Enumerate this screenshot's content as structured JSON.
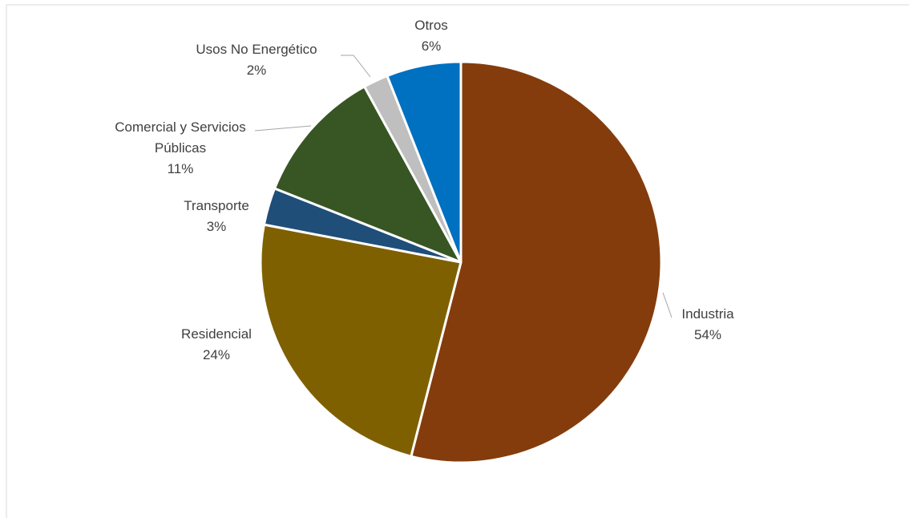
{
  "chart_data": {
    "type": "pie",
    "categories": [
      "Industria",
      "Residencial",
      "Transporte",
      "Comercial y Servicios Públicas",
      "Usos No Energético",
      "Otros"
    ],
    "values": [
      54,
      24,
      3,
      11,
      2,
      6
    ],
    "value_labels": [
      "54%",
      "24%",
      "3%",
      "11%",
      "2%",
      "6%"
    ],
    "colors": [
      "#843c0c",
      "#7f6000",
      "#1f4e79",
      "#375623",
      "#bfbfbf",
      "#0070c0"
    ]
  }
}
